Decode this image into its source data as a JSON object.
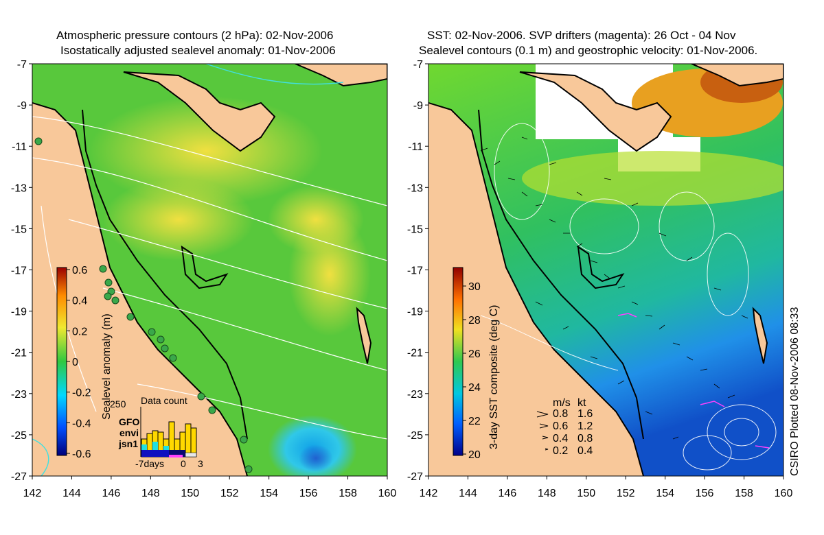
{
  "left_panel": {
    "title_line1": "Atmospheric pressure contours (2 hPa): 02-Nov-2006",
    "title_line2": "Isostatically adjusted sealevel anomaly: 01-Nov-2006",
    "colorbar": {
      "label": "Sealevel anomaly (m)",
      "ticks": [
        "0.6",
        "0.4",
        "0.2",
        "0",
        "-0.2",
        "-0.4",
        "-0.6"
      ]
    },
    "inset": {
      "title": "Data count",
      "ymax": "250",
      "series": [
        {
          "name": "GFO",
          "color": "#ffd800"
        },
        {
          "name": "envi",
          "color": "#20e0e0"
        },
        {
          "name": "jsn1",
          "color": "#1010c0"
        }
      ],
      "xlabels": [
        "-7days",
        "0",
        "3"
      ]
    }
  },
  "right_panel": {
    "title_line1": "SST: 02-Nov-2006. SVP drifters (magenta): 26 Oct - 04 Nov",
    "title_line2": "Sealevel contours (0.1 m) and geostrophic velocity: 01-Nov-2006.",
    "colorbar": {
      "label": "3-day SST composite (deg C)",
      "ticks": [
        "30",
        "28",
        "26",
        "24",
        "22",
        "20"
      ]
    },
    "speed_legend": {
      "header_ms": "m/s",
      "header_kt": "kt",
      "rows": [
        {
          "ms": "0.8",
          "kt": "1.6"
        },
        {
          "ms": "0.6",
          "kt": "1.2"
        },
        {
          "ms": "0.4",
          "kt": "0.8"
        },
        {
          "ms": "0.2",
          "kt": "0.4"
        }
      ]
    }
  },
  "axes": {
    "y_ticks": [
      "-7",
      "-9",
      "-11",
      "-13",
      "-15",
      "-17",
      "-19",
      "-21",
      "-23",
      "-25",
      "-27"
    ],
    "x_ticks": [
      "142",
      "144",
      "146",
      "148",
      "150",
      "152",
      "154",
      "156",
      "158",
      "160"
    ]
  },
  "credit": "CSIRO Plotted 08-Nov-2006 08:33",
  "colors": {
    "land": "#f8c89a",
    "sla_green": "#4cc43c",
    "sla_yellow": "#d8e838",
    "sst_green": "#3cc850",
    "sst_blue": "#2088e8"
  }
}
